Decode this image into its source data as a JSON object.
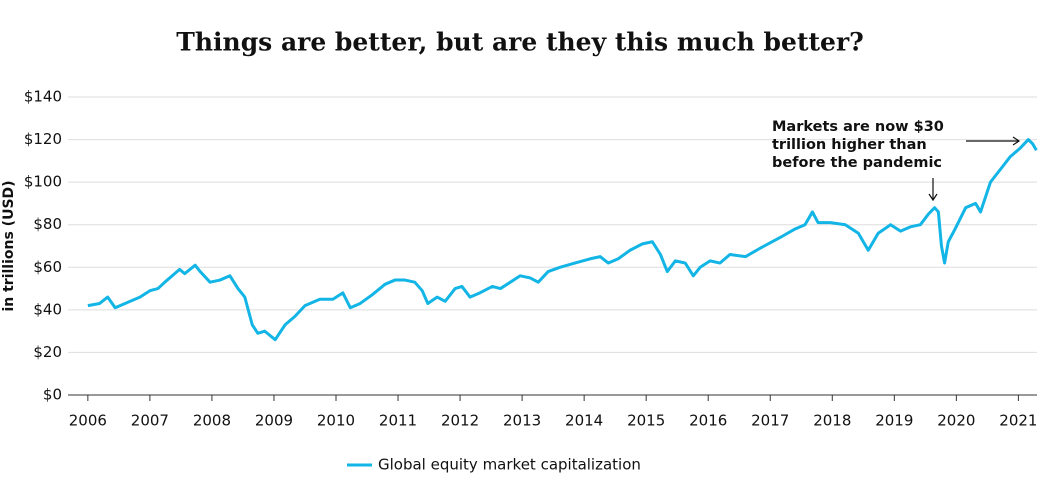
{
  "chart_data": {
    "type": "line",
    "title": "Things are better, but are they this much better?",
    "y_label": "in trillions (USD)",
    "annotation": [
      "Markets are now $30",
      "trillion higher than",
      "before the pandemic"
    ],
    "xlim": [
      2005.68,
      2021.3
    ],
    "xticks": [
      2006,
      2007,
      2008,
      2009,
      2010,
      2011,
      2012,
      2013,
      2014,
      2015,
      2016,
      2017,
      2018,
      2019,
      2020,
      2021
    ],
    "ylim": [
      0,
      140
    ],
    "yticks": [
      {
        "value": 0,
        "label": "$0"
      },
      {
        "value": 20,
        "label": "$20"
      },
      {
        "value": 40,
        "label": "$40"
      },
      {
        "value": 60,
        "label": "$60"
      },
      {
        "value": 80,
        "label": "$80"
      },
      {
        "value": 100,
        "label": "$100"
      },
      {
        "value": 120,
        "label": "$120"
      },
      {
        "value": 140,
        "label": "$140"
      }
    ],
    "grid": true,
    "x": [
      2006.0,
      2006.19,
      2006.32,
      2006.44,
      2006.6,
      2006.84,
      2007.0,
      2007.13,
      2007.24,
      2007.4,
      2007.48,
      2007.56,
      2007.73,
      2007.81,
      2007.97,
      2008.13,
      2008.29,
      2008.42,
      2008.53,
      2008.65,
      2008.74,
      2008.85,
      2009.02,
      2009.18,
      2009.34,
      2009.5,
      2009.74,
      2009.95,
      2010.11,
      2010.23,
      2010.39,
      2010.58,
      2010.79,
      2010.95,
      2011.11,
      2011.27,
      2011.39,
      2011.48,
      2011.63,
      2011.76,
      2011.92,
      2012.03,
      2012.16,
      2012.32,
      2012.52,
      2012.65,
      2012.81,
      2012.97,
      2013.13,
      2013.26,
      2013.42,
      2013.61,
      2013.85,
      2014.1,
      2014.26,
      2014.39,
      2014.55,
      2014.74,
      2014.94,
      2015.1,
      2015.23,
      2015.34,
      2015.47,
      2015.63,
      2015.76,
      2015.87,
      2016.03,
      2016.19,
      2016.35,
      2016.6,
      2016.84,
      2017.16,
      2017.4,
      2017.56,
      2017.68,
      2017.77,
      2017.97,
      2018.21,
      2018.42,
      2018.58,
      2018.74,
      2018.94,
      2019.1,
      2019.26,
      2019.42,
      2019.55,
      2019.65,
      2019.71,
      2019.76,
      2019.81,
      2019.87,
      2019.98,
      2020.15,
      2020.31,
      2020.39,
      2020.55,
      2020.71,
      2020.87,
      2021.03,
      2021.16,
      2021.23,
      2021.29
    ],
    "series": [
      {
        "name": "Global equity market capitalization",
        "color": "#12b5e5",
        "values": [
          42,
          43,
          46,
          41,
          43,
          46,
          49,
          50,
          53,
          57,
          59,
          57,
          61,
          58,
          53,
          54,
          56,
          50,
          46,
          33,
          29,
          30,
          26,
          33,
          37,
          42,
          45,
          45,
          48,
          41,
          43,
          47,
          52,
          54,
          54,
          53,
          49,
          43,
          46,
          44,
          50,
          51,
          46,
          48,
          51,
          50,
          53,
          56,
          55,
          53,
          58,
          60,
          62,
          64,
          65,
          62,
          64,
          68,
          71,
          72,
          66,
          58,
          63,
          62,
          56,
          60,
          63,
          62,
          66,
          65,
          69,
          74,
          78,
          80,
          86,
          81,
          81,
          80,
          76,
          68,
          76,
          80,
          77,
          79,
          80,
          85,
          88,
          86,
          70,
          62,
          72,
          78,
          88,
          90,
          86,
          100,
          106,
          112,
          116,
          120,
          118,
          115
        ]
      }
    ]
  }
}
